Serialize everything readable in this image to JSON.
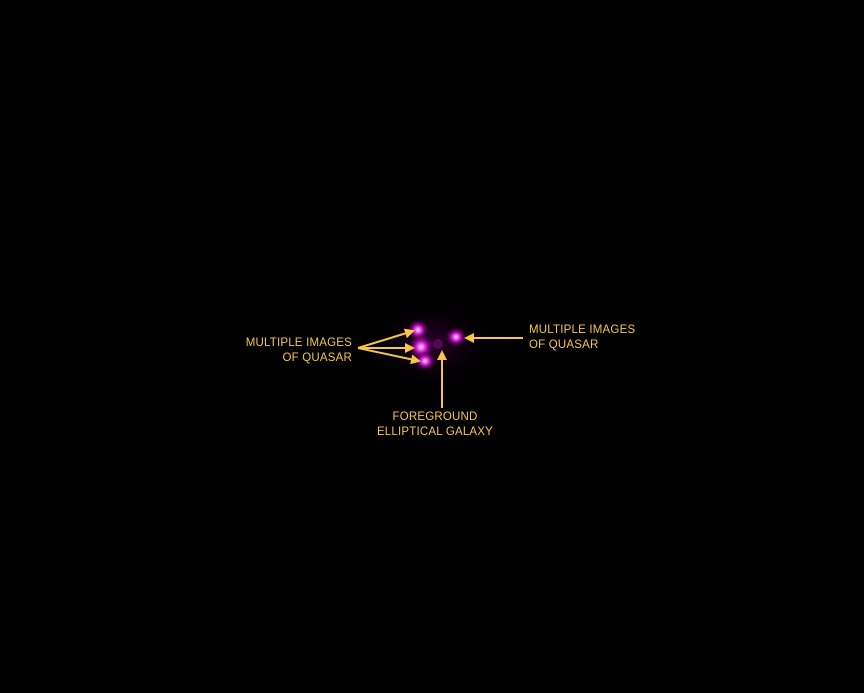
{
  "image": {
    "background_color": "#000000",
    "source_color": "#ff33ff",
    "annotation_color": "#f5c64a"
  },
  "annotations": {
    "left": {
      "line1": "MULTIPLE IMAGES",
      "line2": "OF QUASAR"
    },
    "right": {
      "line1": "MULTIPLE IMAGES",
      "line2": "OF QUASAR"
    },
    "bottom": {
      "line1": "FOREGROUND",
      "line2": "ELLIPTICAL GALAXY"
    }
  }
}
